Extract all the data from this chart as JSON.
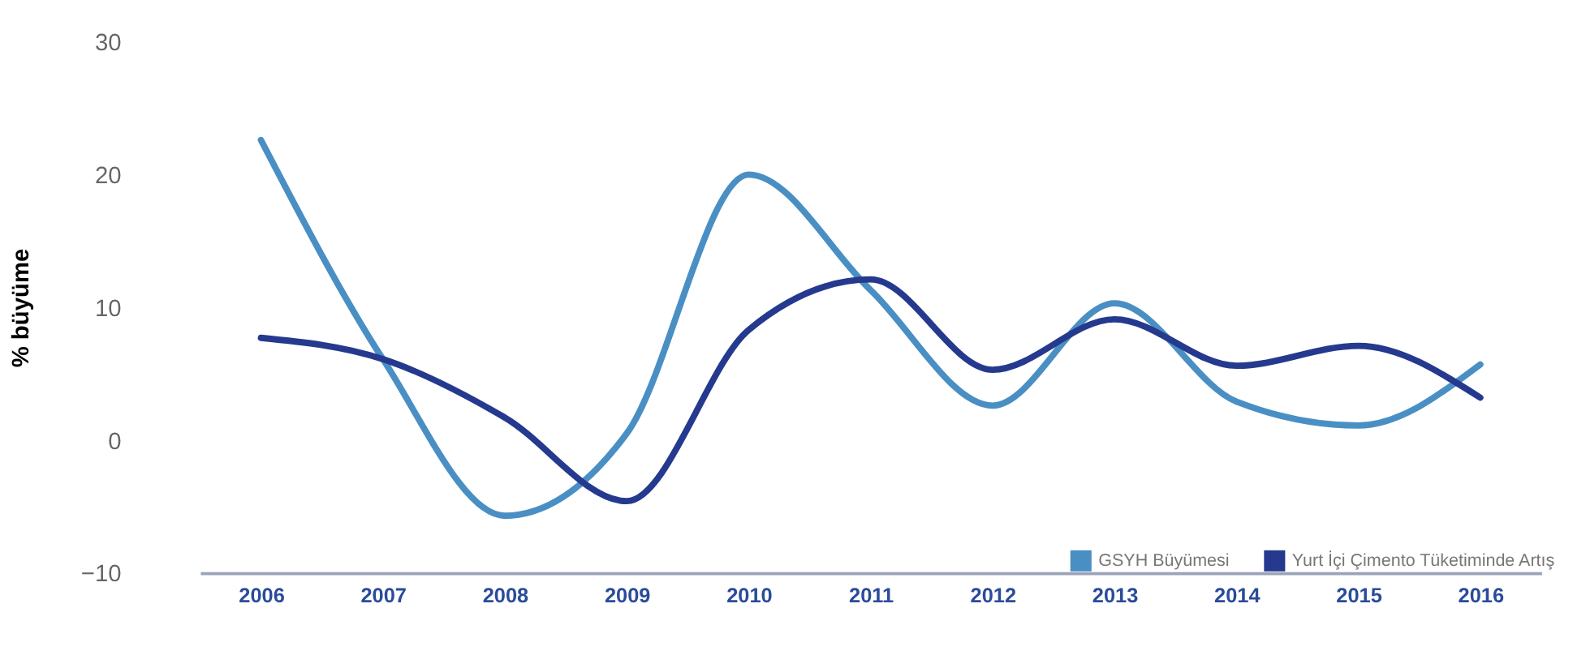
{
  "chart_data": {
    "type": "line",
    "ylabel": "% büyüme",
    "categories": [
      "2006",
      "2007",
      "2008",
      "2009",
      "2010",
      "2011",
      "2012",
      "2013",
      "2014",
      "2015",
      "2016"
    ],
    "series": [
      {
        "name": "GSYH Büyümesi",
        "color": "#4a8fc4",
        "values": [
          22.6,
          6.1,
          -5.7,
          0.5,
          20,
          11.3,
          2.6,
          10.3,
          2.9,
          1.1,
          5.7
        ]
      },
      {
        "name": "Yurt İçi Çimento Tüketiminde Artış",
        "color": "#253a8e",
        "values": [
          7.7,
          6.1,
          1.7,
          -4.6,
          8.3,
          12.1,
          5.3,
          9.1,
          5.6,
          7.1,
          3.2
        ]
      }
    ],
    "ylim": [
      -10,
      30
    ],
    "yticks": [
      -10,
      0,
      10,
      20,
      30
    ],
    "grid": false,
    "legend": "bottom right",
    "marker": "none",
    "line_style": "solid"
  }
}
